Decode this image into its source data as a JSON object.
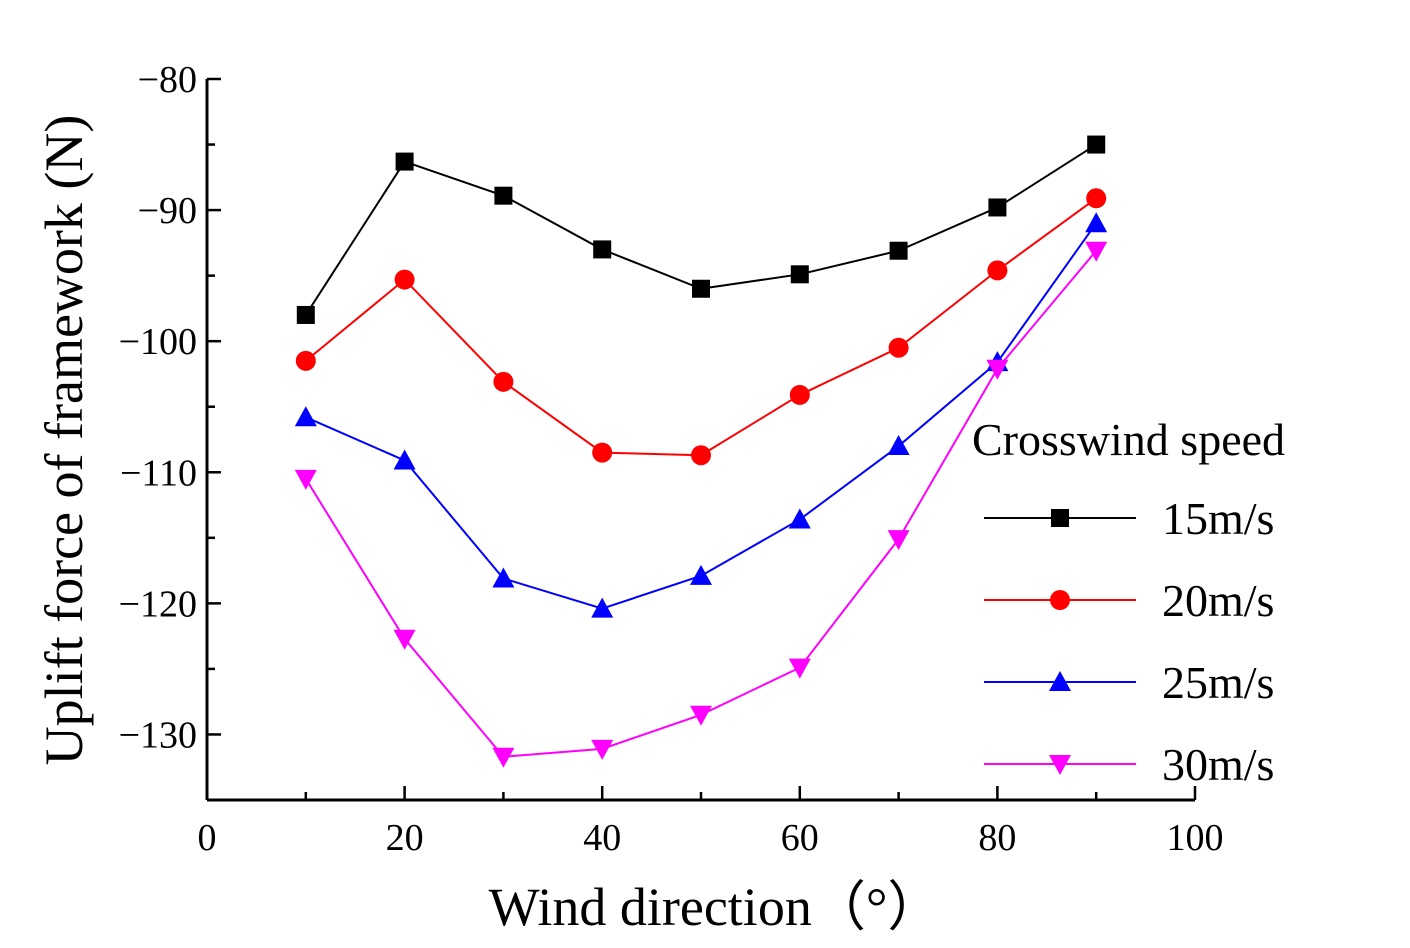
{
  "chart_data": {
    "type": "line",
    "title": "",
    "xlabel": "Wind direction（°）",
    "ylabel": "Uplift force of framework (N)",
    "xlim": [
      0,
      100
    ],
    "ylim": [
      -135,
      -80
    ],
    "xticks": [
      0,
      20,
      40,
      60,
      80,
      100
    ],
    "yticks": [
      -130,
      -120,
      -110,
      -100,
      -90,
      -80
    ],
    "ytick_labels": [
      "−130",
      "−120",
      "−110",
      "−100",
      "−90",
      "−80"
    ],
    "grid": false,
    "legend_title": "Crosswind speed",
    "legend_position": "right",
    "x": [
      10,
      20,
      30,
      40,
      50,
      60,
      70,
      80,
      90
    ],
    "series": [
      {
        "name": "15m/s",
        "color": "#000000",
        "marker": "square",
        "values": [
          -98.0,
          -86.3,
          -88.9,
          -93.0,
          -96.0,
          -94.9,
          -93.1,
          -89.8,
          -85.0
        ]
      },
      {
        "name": "20m/s",
        "color": "#ff0000",
        "marker": "circle",
        "values": [
          -101.5,
          -95.3,
          -103.1,
          -108.5,
          -108.7,
          -104.1,
          -100.5,
          -94.6,
          -89.1
        ]
      },
      {
        "name": "25m/s",
        "color": "#0000ff",
        "marker": "triangle-up",
        "values": [
          -105.8,
          -109.1,
          -118.1,
          -120.4,
          -117.9,
          -113.6,
          -108.0,
          -101.6,
          -91.0
        ]
      },
      {
        "name": "30m/s",
        "color": "#ff00ff",
        "marker": "triangle-down",
        "values": [
          -110.5,
          -122.7,
          -131.7,
          -131.1,
          -128.5,
          -124.9,
          -115.1,
          -102.1,
          -93.1
        ]
      }
    ]
  }
}
